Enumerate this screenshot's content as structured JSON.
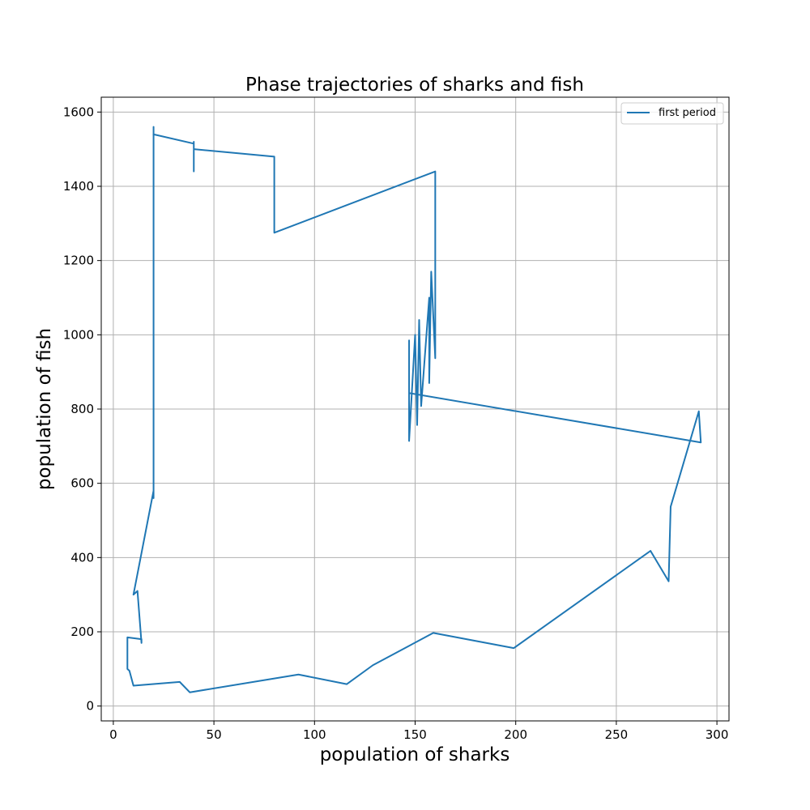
{
  "chart_data": {
    "type": "line",
    "title": "Phase trajectories of sharks and fish",
    "xlabel": "population of sharks",
    "ylabel": "population of fish",
    "xlim": [
      -6,
      306
    ],
    "ylim": [
      -40,
      1640
    ],
    "xticks": [
      0,
      50,
      100,
      150,
      200,
      250,
      300
    ],
    "yticks": [
      0,
      200,
      400,
      600,
      800,
      1000,
      1200,
      1400,
      1600
    ],
    "grid": true,
    "legend_position": "top-right",
    "series": [
      {
        "name": "first period",
        "color": "#1f77b4",
        "points": [
          [
            20,
            1540
          ],
          [
            20,
            1560
          ],
          [
            20,
            1520
          ],
          [
            20,
            1540
          ],
          [
            20,
            1480
          ],
          [
            20,
            1440
          ],
          [
            20,
            1470
          ],
          [
            20,
            1100
          ],
          [
            20,
            1030
          ],
          [
            20,
            1070
          ],
          [
            20,
            600
          ],
          [
            20,
            560
          ],
          [
            20,
            580
          ],
          [
            10,
            300
          ],
          [
            12,
            310
          ],
          [
            14,
            170
          ],
          [
            14,
            180
          ],
          [
            7,
            185
          ],
          [
            7,
            100
          ],
          [
            8,
            95
          ],
          [
            10,
            55
          ],
          [
            33,
            65
          ],
          [
            38,
            37
          ],
          [
            92,
            85
          ],
          [
            116,
            59
          ],
          [
            129,
            110
          ],
          [
            159,
            197
          ],
          [
            199,
            156
          ],
          [
            267,
            418
          ],
          [
            276,
            336
          ],
          [
            277,
            537
          ],
          [
            291,
            794
          ],
          [
            292,
            710
          ],
          [
            147,
            843
          ],
          [
            147,
            985
          ],
          [
            147,
            714
          ],
          [
            150,
            1000
          ],
          [
            151,
            757
          ],
          [
            152,
            1040
          ],
          [
            153,
            808
          ],
          [
            157,
            1100
          ],
          [
            157,
            870
          ],
          [
            158,
            1170
          ],
          [
            160,
            937
          ],
          [
            160,
            1250
          ],
          [
            160,
            1120
          ],
          [
            160,
            1440
          ],
          [
            80,
            1275
          ],
          [
            80,
            1440
          ],
          [
            80,
            1280
          ],
          [
            80,
            1480
          ],
          [
            40,
            1500
          ],
          [
            40,
            1440
          ],
          [
            40,
            1520
          ],
          [
            40,
            1515
          ],
          [
            20,
            1540
          ]
        ]
      }
    ]
  }
}
